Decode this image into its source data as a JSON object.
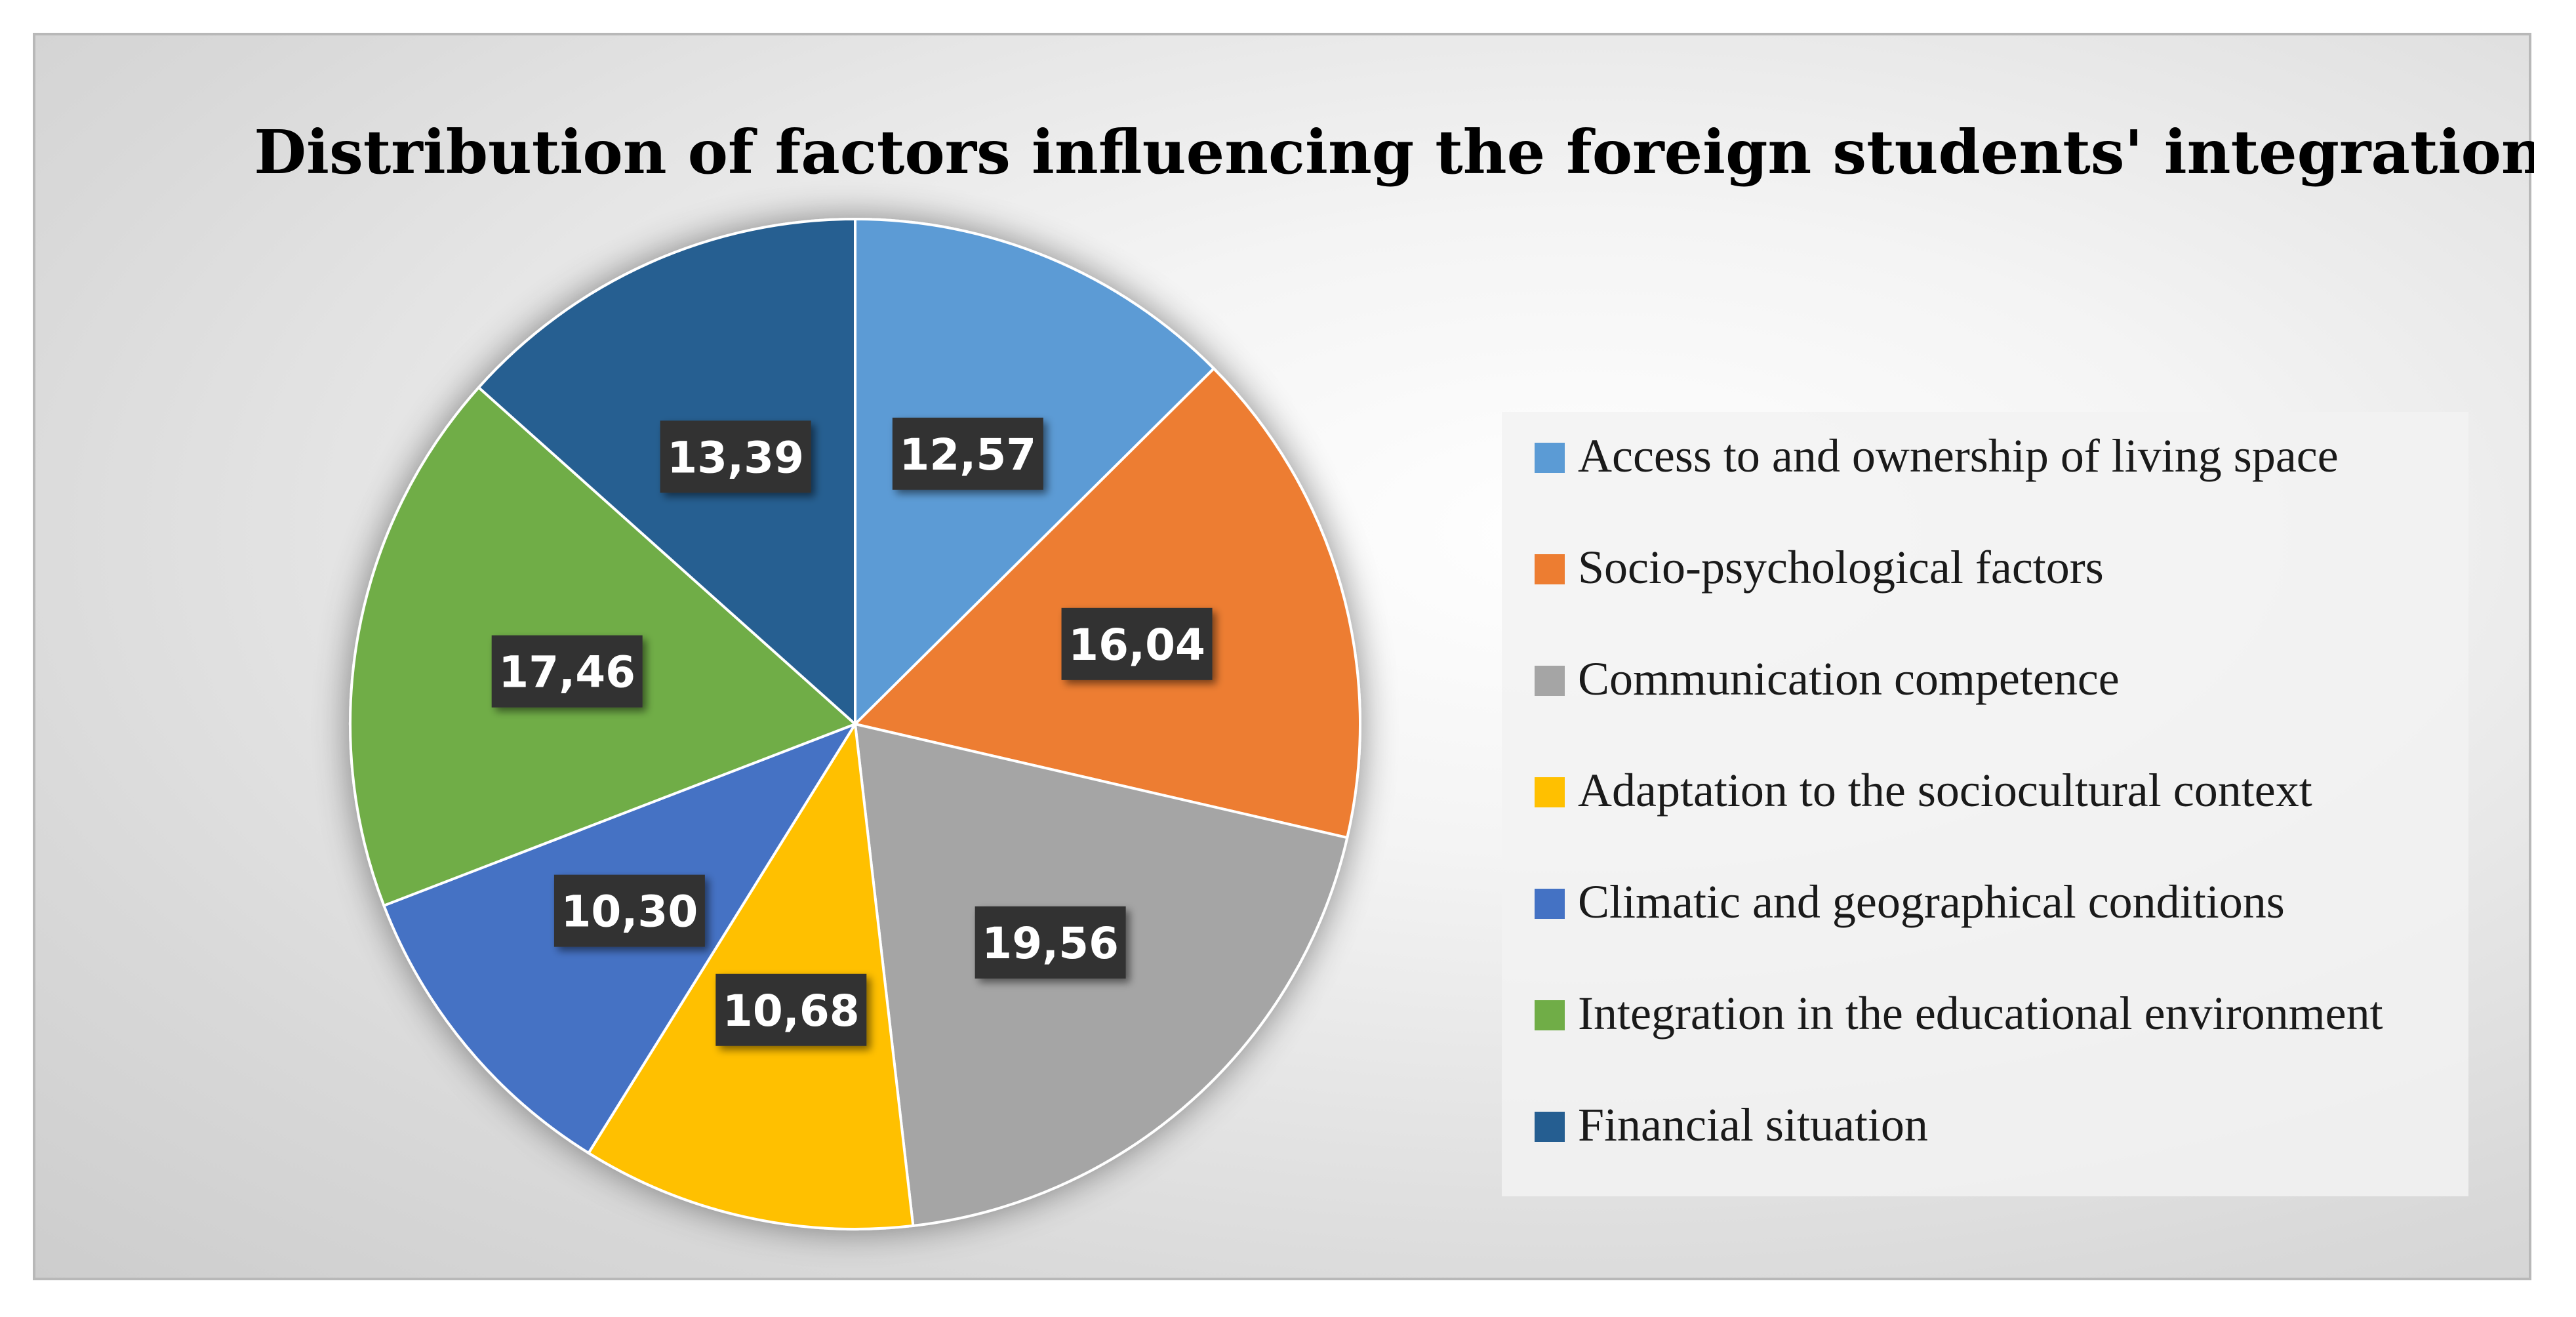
{
  "chart_data": {
    "type": "pie",
    "title": "Distribution of factors influencing the foreign students' integration",
    "legend_position": "right",
    "categories": [
      "Access to and ownership of living space",
      "Socio-psychological factors",
      "Communication competence",
      "Adaptation to the sociocultural context",
      "Climatic and geographical conditions",
      "Integration in the educational environment",
      "Financial situation"
    ],
    "values": [
      12.57,
      16.04,
      19.56,
      10.68,
      10.3,
      17.46,
      13.39
    ],
    "labels": [
      "12,57",
      "16,04",
      "19,56",
      "10,68",
      "10,30",
      "17,46",
      "13,39"
    ],
    "colors": [
      "#5b9bd5",
      "#ed7d31",
      "#a5a5a5",
      "#ffc000",
      "#4472c4",
      "#70ad47",
      "#255e91"
    ]
  }
}
